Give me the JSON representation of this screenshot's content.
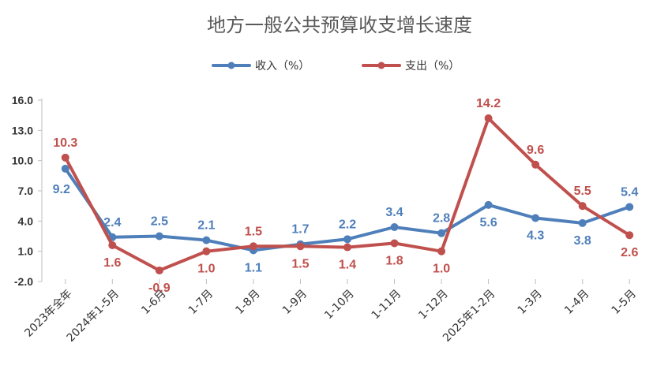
{
  "chart_data": {
    "type": "line",
    "title": "地方一般公共预算收支增长速度",
    "categories": [
      "2023年全年",
      "2024年1-5月",
      "1-6月",
      "1-7月",
      "1-8月",
      "1-9月",
      "1-10月",
      "1-11月",
      "1-12月",
      "2025年1-2月",
      "1-3月",
      "1-4月",
      "1-5月"
    ],
    "series": [
      {
        "name": "收入（%）",
        "color": "#4f7fba",
        "values": [
          9.2,
          2.4,
          2.5,
          2.1,
          1.1,
          1.7,
          2.2,
          3.4,
          2.8,
          5.6,
          4.3,
          3.8,
          5.4
        ],
        "labels": [
          "9.2",
          "2.4",
          "2.5",
          "2.1",
          "1.1",
          "1.7",
          "2.2",
          "3.4",
          "2.8",
          "5.6",
          "4.3",
          "3.8",
          "5.4"
        ]
      },
      {
        "name": "支出（%）",
        "color": "#c0504d",
        "values": [
          10.3,
          1.6,
          -0.9,
          1.0,
          1.5,
          1.5,
          1.4,
          1.8,
          1.0,
          14.2,
          9.6,
          5.5,
          2.6
        ],
        "labels": [
          "10.3",
          "1.6",
          "-0.9",
          "1.0",
          "1.5",
          "1.5",
          "1.4",
          "1.8",
          "1.0",
          "14.2",
          "9.6",
          "5.5",
          "2.6"
        ]
      }
    ],
    "yticks": [
      "16.0",
      "13.0",
      "10.0",
      "7.0",
      "4.0",
      "1.0",
      "-2.0"
    ],
    "ylim": [
      -2.0,
      16.0
    ],
    "grid": false,
    "legend_position": "top-center"
  }
}
